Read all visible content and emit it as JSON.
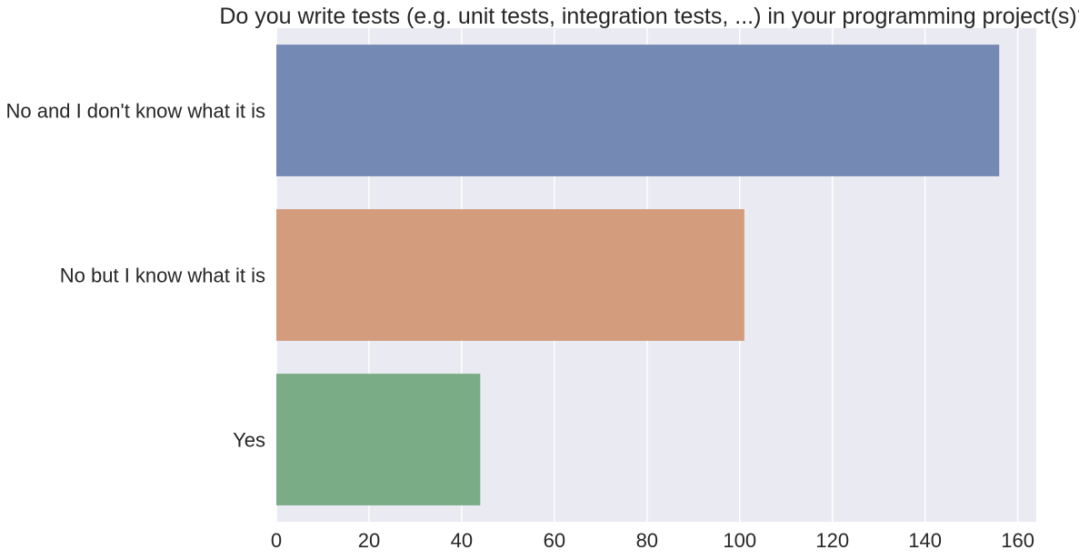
{
  "chart_data": {
    "type": "bar",
    "orientation": "horizontal",
    "title": "Do you write tests (e.g. unit tests, integration tests, ...) in your programming project(s)?",
    "xlabel": "",
    "ylabel": "",
    "categories": [
      "No and I don't know what it is",
      "No but I know what it is",
      "Yes"
    ],
    "values": [
      156,
      101,
      44
    ],
    "colors": [
      "#7489b3",
      "#d39d7d",
      "#7aad85"
    ],
    "xlim": [
      0,
      164
    ],
    "xticks": [
      0,
      20,
      40,
      60,
      80,
      100,
      120,
      140,
      160
    ],
    "xtick_labels": [
      "0",
      "20",
      "40",
      "60",
      "80",
      "100",
      "120",
      "140",
      "160"
    ],
    "grid": true,
    "background": "#eaeaf2",
    "legend": "none"
  }
}
